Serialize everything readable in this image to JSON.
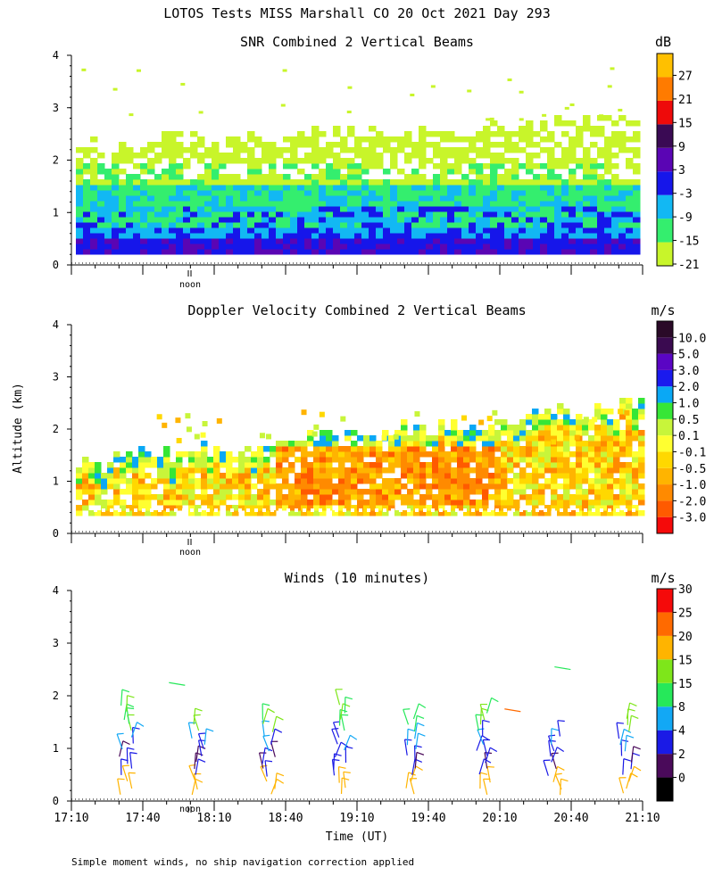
{
  "title": "LOTOS Tests MISS Marshall CO  20 Oct 2021 Day 293",
  "ylabel": "Altitude (km)",
  "xlabel": "Time (UT)",
  "footnote": "Simple moment winds, no ship navigation correction applied",
  "noon_label": "noon",
  "chart_data": [
    {
      "type": "heatmap",
      "title": "SNR Combined 2 Vertical Beams",
      "unit": "dB",
      "ylim": [
        0,
        4
      ],
      "yticks": [
        "0",
        "1",
        "2",
        "3",
        "4"
      ],
      "x_ticks": [
        "17:10",
        "17:40",
        "18:10",
        "18:40",
        "19:10",
        "19:40",
        "20:10",
        "20:40",
        "21:10"
      ],
      "colorbar_labels": [
        "-21",
        "-15",
        "-9",
        "-3",
        "3",
        "9",
        "15",
        "21",
        "27"
      ],
      "colorbar_colors": [
        "#c8f52a",
        "#34ee6e",
        "#12b8f3",
        "#1616ea",
        "#5a05b4",
        "#3a0a54",
        "#ee0a0a",
        "#ff7b00",
        "#ffc000"
      ]
    },
    {
      "type": "heatmap",
      "title": "Doppler Velocity Combined 2 Vertical Beams",
      "unit": "m/s",
      "ylim": [
        0,
        4
      ],
      "yticks": [
        "0",
        "1",
        "2",
        "3",
        "4"
      ],
      "x_ticks": [
        "17:10",
        "17:40",
        "18:10",
        "18:40",
        "19:10",
        "19:40",
        "20:10",
        "20:40",
        "21:10"
      ],
      "colorbar_labels": [
        "-3.0",
        "-2.0",
        "-1.0",
        "-0.5",
        "-0.1",
        "0.1",
        "0.5",
        "1.0",
        "2.0",
        "3.0",
        "5.0",
        "10.0"
      ],
      "colorbar_colors": [
        "#f50a0a",
        "#ff5a00",
        "#ff8a00",
        "#ffb400",
        "#ffd800",
        "#ffff30",
        "#c8f53a",
        "#36e636",
        "#0aa8f5",
        "#1a1aee",
        "#5a05c4",
        "#3a0a50",
        "#2a0a28"
      ]
    },
    {
      "type": "scatter",
      "title": "Winds (10 minutes)",
      "unit": "m/s",
      "ylim": [
        0,
        4
      ],
      "yticks": [
        "0",
        "1",
        "2",
        "3",
        "4"
      ],
      "x_ticks": [
        "17:10",
        "17:40",
        "18:10",
        "18:40",
        "19:10",
        "19:40",
        "20:10",
        "20:40",
        "21:10"
      ],
      "colorbar_labels": [
        "0",
        "2",
        "4",
        "8",
        "15",
        "15",
        "20",
        "25",
        "30"
      ],
      "colorbar_colors": [
        "#000000",
        "#4a0a5a",
        "#1a1ae6",
        "#12a8f5",
        "#26e85a",
        "#7ee61a",
        "#ffb400",
        "#ff6a00",
        "#f50a0a"
      ],
      "barb_times_hours": [
        17.75,
        18.25,
        18.75,
        19.25,
        19.75,
        20.25,
        20.75,
        21.25
      ]
    }
  ]
}
